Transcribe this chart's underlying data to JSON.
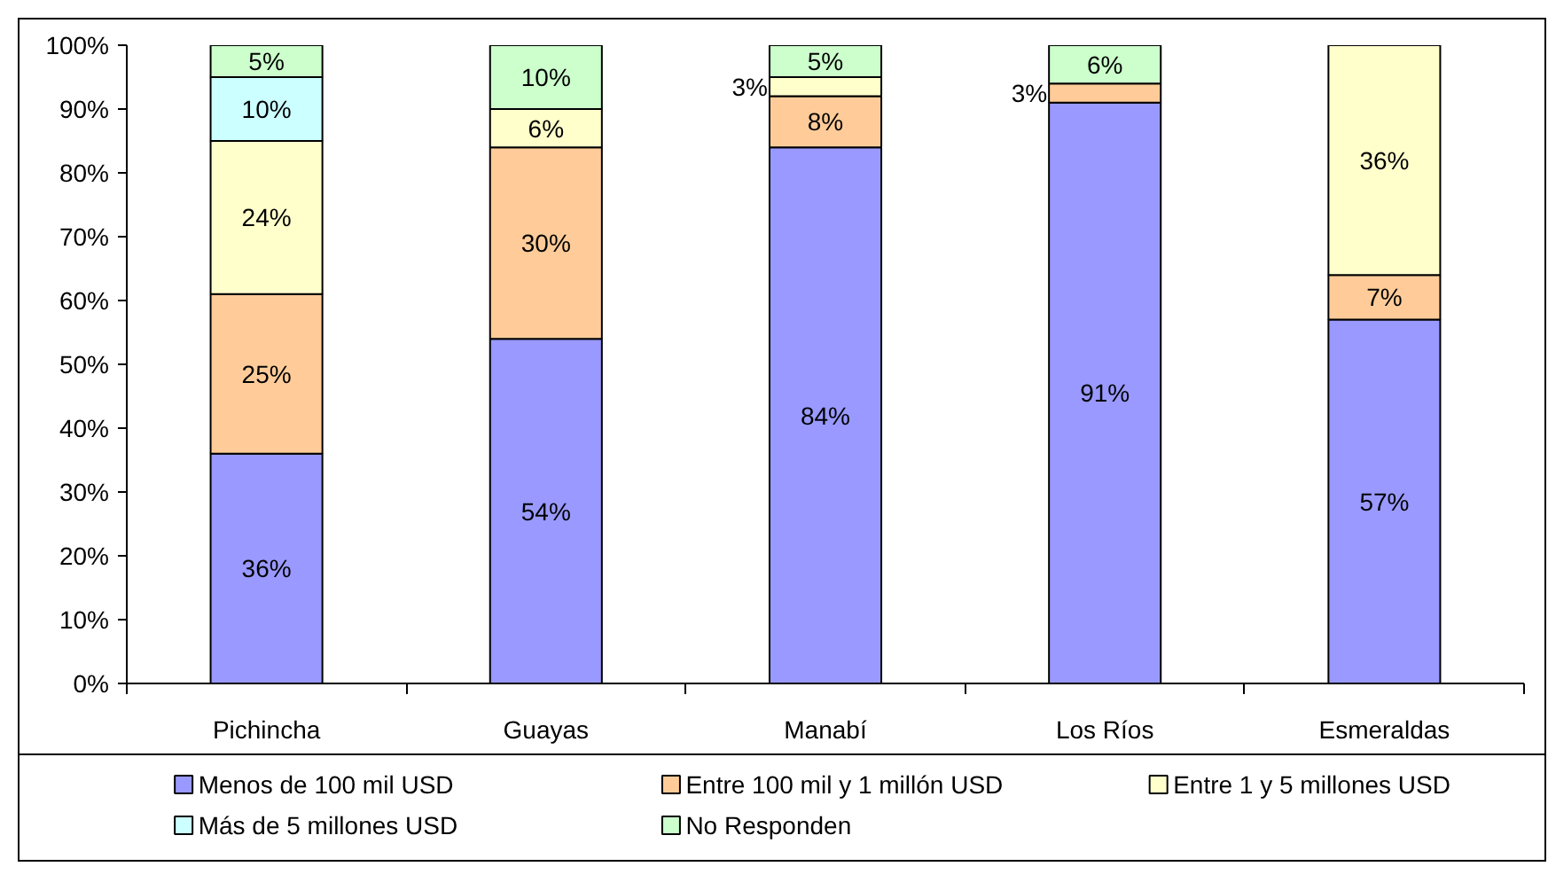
{
  "chart_data": {
    "type": "bar",
    "stacked": true,
    "legend": "bottom",
    "categories": [
      "Pichincha",
      "Guayas",
      "Manabí",
      "Los Ríos",
      "Esmeraldas"
    ],
    "ylim": [
      0,
      100
    ],
    "yticks": [
      {
        "value": 0,
        "label": "0%"
      },
      {
        "value": 10,
        "label": "10%"
      },
      {
        "value": 20,
        "label": "20%"
      },
      {
        "value": 30,
        "label": "30%"
      },
      {
        "value": 40,
        "label": "40%"
      },
      {
        "value": 50,
        "label": "50%"
      },
      {
        "value": 60,
        "label": "60%"
      },
      {
        "value": 70,
        "label": "70%"
      },
      {
        "value": 80,
        "label": "80%"
      },
      {
        "value": 90,
        "label": "90%"
      },
      {
        "value": 100,
        "label": "100%"
      }
    ],
    "series": [
      {
        "name": "Menos de 100 mil USD",
        "color": "#9999ff",
        "values": [
          36,
          54,
          84,
          91,
          57
        ],
        "value_labels": [
          "36%",
          "54%",
          "84%",
          "91%",
          "57%"
        ]
      },
      {
        "name": "Entre 100 mil y 1 millón USD",
        "color": "#ffcc99",
        "values": [
          25,
          30,
          8,
          3,
          7
        ],
        "value_labels": [
          "25%",
          "30%",
          "8%",
          "3%",
          "7%"
        ]
      },
      {
        "name": "Entre 1 y 5 millones USD",
        "color": "#ffffcc",
        "values": [
          24,
          6,
          3,
          null,
          36
        ],
        "value_labels": [
          "24%",
          "6%",
          "3%",
          null,
          "36%"
        ]
      },
      {
        "name": "Más de 5 millones USD",
        "color": "#ccffff",
        "values": [
          10,
          null,
          null,
          null,
          null
        ],
        "value_labels": [
          "10%",
          null,
          null,
          null,
          null
        ]
      },
      {
        "name": "No Responden",
        "color": "#ccffcc",
        "values": [
          5,
          10,
          5,
          6,
          null
        ],
        "value_labels": [
          "5%",
          "10%",
          "5%",
          "6%",
          null
        ]
      }
    ]
  }
}
